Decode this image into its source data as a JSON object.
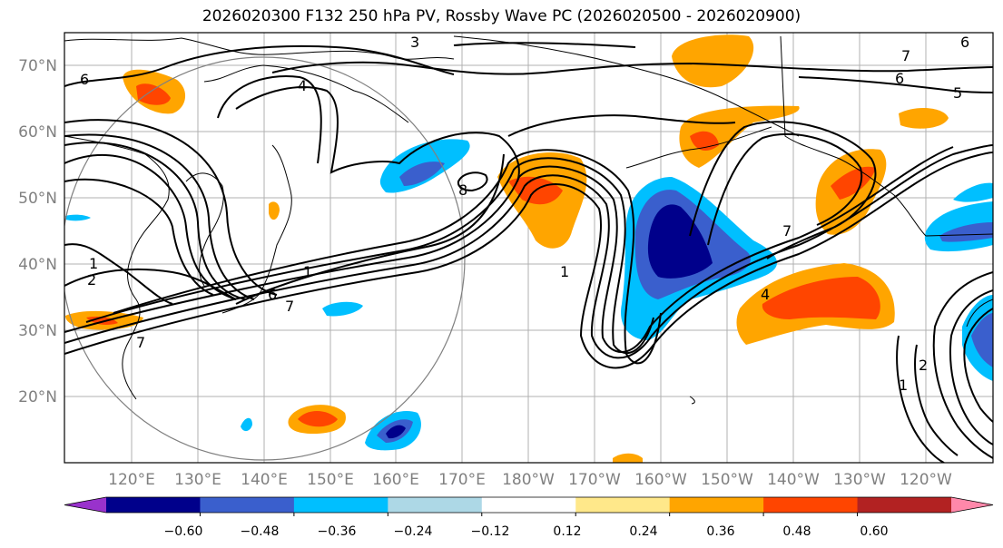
{
  "title": "2026020300 F132 250 hPa PV, Rossby Wave PC (2026020500 - 2026020900)",
  "lat_labels": [
    "70°N",
    "60°N",
    "50°N",
    "40°N",
    "30°N",
    "20°N"
  ],
  "lon_labels": [
    "120°E",
    "130°E",
    "140°E",
    "150°E",
    "160°E",
    "170°E",
    "180°W",
    "170°W",
    "160°W",
    "150°W",
    "140°W",
    "130°W",
    "120°W"
  ],
  "colorbar": {
    "ticks": [
      "−0.60",
      "−0.48",
      "−0.36",
      "−0.24",
      "−0.12",
      "0.12",
      "0.24",
      "0.36",
      "0.48",
      "0.60"
    ],
    "colors": [
      "#9932cc",
      "#00008b",
      "#3a5fcd",
      "#00bfff",
      "#add8e6",
      "#ffffff",
      "#ffe88a",
      "#ffa500",
      "#ff4500",
      "#b22222",
      "#ff88aa"
    ]
  },
  "contour_labels": [
    "6",
    "3",
    "4",
    "7",
    "6",
    "5",
    "6",
    "7",
    "1",
    "2",
    "6",
    "7",
    "1",
    "8",
    "1",
    "4",
    "7",
    "1",
    "2"
  ]
}
